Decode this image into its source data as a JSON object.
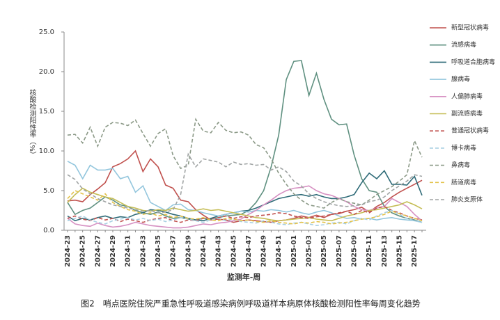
{
  "chart_data": {
    "type": "line",
    "y_label": "核酸检测阳性率（%）",
    "x_label": "监测年-周",
    "caption": "图2　哨点医院住院严重急性呼吸道感染病例呼吸道样本病原体核酸检测阳性率每周变化趋势",
    "categories": [
      "2024-23",
      null,
      "2024-25",
      null,
      "2024-27",
      null,
      "2024-29",
      null,
      "2024-31",
      null,
      "2024-33",
      null,
      "2024-35",
      null,
      "2024-37",
      null,
      "2024-39",
      null,
      "2024-41",
      null,
      "2024-43",
      null,
      "2024-45",
      null,
      "2024-47",
      null,
      "2024-49",
      null,
      "2024-51",
      null,
      "2025-01",
      null,
      "2025-03",
      null,
      "2025-05",
      null,
      "2025-07",
      null,
      "2025-09",
      null,
      "2025-11",
      null,
      "2025-13",
      null,
      "2025-15",
      null,
      "2025-17",
      null
    ],
    "ylim": [
      0,
      25
    ],
    "yticks": [
      {
        "value": 0,
        "label": "0.0"
      },
      {
        "value": 5,
        "label": "5.0"
      },
      {
        "value": 10,
        "label": "10.0"
      },
      {
        "value": 15,
        "label": "15.0"
      },
      {
        "value": 20,
        "label": "20.0"
      },
      {
        "value": 25,
        "label": "25.0"
      }
    ],
    "grid": false,
    "legend": "right",
    "series": [
      {
        "name": "新型冠状病毒",
        "color": "#c0504d",
        "dashed": false,
        "values": [
          3.7,
          3.8,
          3.6,
          4.5,
          5.2,
          6.0,
          8.0,
          8.4,
          9.0,
          10.0,
          7.4,
          9.0,
          8.0,
          5.7,
          5.3,
          3.8,
          3.6,
          2.6,
          1.9,
          1.3,
          1.4,
          1.3,
          1.0,
          1.2,
          1.3,
          1.2,
          1.1,
          1.0,
          1.2,
          1.3,
          1.5,
          1.8,
          1.6,
          1.9,
          1.6,
          2.0,
          2.1,
          2.4,
          2.6,
          2.9,
          2.3,
          3.0,
          3.5,
          4.2,
          4.8,
          5.3,
          5.8,
          6.3
        ]
      },
      {
        "name": "流感病毒",
        "color": "#5f9080",
        "dashed": false,
        "values": [
          3.5,
          2.0,
          2.5,
          2.8,
          3.5,
          4.2,
          3.8,
          3.2,
          3.0,
          2.5,
          2.2,
          2.0,
          2.3,
          1.8,
          1.5,
          1.6,
          1.4,
          1.3,
          1.5,
          1.4,
          1.6,
          1.8,
          1.9,
          2.0,
          2.5,
          3.5,
          5.0,
          8.0,
          12.0,
          19.0,
          21.3,
          21.4,
          17.0,
          19.8,
          16.5,
          14.0,
          13.3,
          13.4,
          9.5,
          6.5,
          5.0,
          4.8,
          3.0,
          2.2,
          1.8,
          1.5,
          1.3,
          1.0
        ]
      },
      {
        "name": "呼吸道合胞病毒",
        "color": "#2f6b78",
        "dashed": false,
        "values": [
          1.8,
          1.2,
          1.5,
          1.3,
          1.6,
          1.8,
          1.5,
          1.7,
          1.6,
          2.0,
          2.2,
          2.6,
          2.5,
          2.3,
          2.0,
          1.8,
          1.5,
          1.3,
          1.2,
          1.5,
          1.8,
          2.0,
          2.2,
          2.4,
          2.5,
          2.8,
          3.2,
          3.6,
          4.0,
          4.2,
          4.4,
          4.5,
          4.3,
          4.5,
          4.2,
          4.0,
          4.0,
          4.2,
          4.5,
          6.0,
          7.2,
          6.5,
          7.5,
          5.8,
          5.8,
          5.7,
          6.8,
          4.4
        ]
      },
      {
        "name": "腺病毒",
        "color": "#93c6dd",
        "dashed": false,
        "values": [
          8.7,
          8.2,
          6.5,
          8.2,
          7.6,
          7.6,
          7.8,
          6.5,
          6.8,
          4.8,
          5.6,
          3.5,
          3.0,
          2.5,
          3.2,
          3.3,
          2.6,
          2.5,
          2.2,
          2.0,
          1.8,
          2.0,
          2.2,
          2.4,
          2.3,
          2.5,
          2.4,
          2.6,
          2.5,
          2.3,
          2.5,
          2.2,
          2.0,
          2.3,
          2.5,
          2.2,
          1.8,
          1.5,
          1.6,
          1.4,
          1.5,
          1.3,
          1.5,
          1.6,
          1.4,
          1.3,
          1.2,
          1.0
        ]
      },
      {
        "name": "人偏肺病毒",
        "color": "#d690c2",
        "dashed": false,
        "values": [
          1.5,
          0.8,
          0.6,
          0.5,
          0.9,
          0.6,
          0.4,
          0.5,
          0.7,
          1.0,
          0.8,
          0.6,
          0.5,
          0.4,
          0.3,
          0.3,
          0.4,
          0.6,
          0.8,
          0.7,
          0.9,
          1.0,
          1.2,
          1.4,
          2.0,
          2.5,
          3.2,
          3.8,
          4.5,
          5.0,
          5.3,
          5.4,
          5.6,
          5.0,
          4.6,
          4.4,
          4.0,
          3.6,
          3.0,
          2.6,
          2.5,
          2.8,
          3.0,
          4.0,
          3.5,
          3.0,
          2.0,
          1.2
        ]
      },
      {
        "name": "副流感病毒",
        "color": "#c5bd55",
        "dashed": false,
        "values": [
          3.5,
          4.5,
          5.3,
          4.8,
          4.5,
          4.2,
          4.0,
          3.5,
          3.0,
          2.8,
          2.5,
          2.4,
          2.6,
          2.5,
          2.8,
          2.6,
          2.4,
          2.5,
          2.7,
          2.5,
          2.6,
          2.4,
          2.2,
          2.0,
          1.8,
          1.6,
          1.5,
          1.3,
          1.2,
          1.3,
          1.4,
          1.5,
          1.6,
          1.4,
          1.3,
          1.2,
          1.5,
          1.8,
          2.0,
          2.2,
          2.5,
          2.6,
          2.8,
          3.0,
          3.2,
          3.6,
          3.2,
          2.7
        ]
      },
      {
        "name": "普通冠状病毒",
        "color": "#c0504d",
        "dashed": true,
        "values": [
          1.5,
          1.8,
          1.4,
          1.2,
          1.6,
          1.3,
          1.5,
          1.1,
          1.4,
          1.2,
          1.0,
          1.3,
          1.5,
          1.6,
          1.2,
          1.0,
          1.3,
          1.2,
          1.5,
          1.4,
          1.6,
          1.8,
          1.5,
          1.7,
          1.6,
          1.8,
          1.9,
          2.0,
          2.2,
          2.1,
          1.8,
          1.6,
          1.5,
          1.7,
          1.8,
          2.0,
          2.2,
          2.4,
          2.0,
          2.5,
          2.2,
          2.8,
          3.0,
          2.5,
          2.2,
          1.8,
          1.5,
          1.3
        ]
      },
      {
        "name": "博卡病毒",
        "color": "#a8cfe2",
        "dashed": true,
        "values": [
          1.2,
          1.5,
          1.8,
          1.3,
          1.0,
          0.8,
          1.2,
          1.4,
          1.6,
          1.3,
          1.5,
          1.2,
          1.4,
          1.1,
          1.3,
          1.6,
          1.4,
          1.2,
          1.0,
          1.3,
          1.5,
          1.2,
          1.4,
          1.1,
          1.0,
          0.9,
          1.2,
          1.0,
          0.8,
          0.7,
          0.9,
          1.0,
          0.8,
          0.6,
          0.7,
          0.9,
          1.0,
          0.8,
          1.2,
          1.5,
          1.3,
          1.8,
          2.2,
          2.5,
          2.0,
          1.5,
          1.2,
          1.0
        ]
      },
      {
        "name": "鼻病毒",
        "color": "#8c9a88",
        "dashed": true,
        "values": [
          12.0,
          12.1,
          11.0,
          13.0,
          10.6,
          13.0,
          13.6,
          13.5,
          13.2,
          13.9,
          12.2,
          10.6,
          12.2,
          12.8,
          9.4,
          7.8,
          8.2,
          14.0,
          12.5,
          12.3,
          13.6,
          12.6,
          12.3,
          12.4,
          12.0,
          10.8,
          10.4,
          9.0,
          7.2,
          5.8,
          4.6,
          3.8,
          3.2,
          3.0,
          2.8,
          3.5,
          4.0,
          3.6,
          3.4,
          3.2,
          3.8,
          4.5,
          5.0,
          5.5,
          6.2,
          7.0,
          11.3,
          9.2
        ]
      },
      {
        "name": "肠道病毒",
        "color": "#e3c24a",
        "dashed": true,
        "values": [
          4.0,
          5.0,
          4.6,
          4.2,
          3.8,
          4.6,
          3.5,
          3.0,
          2.6,
          2.4,
          2.0,
          2.2,
          1.8,
          2.0,
          1.6,
          1.8,
          1.5,
          1.4,
          1.6,
          1.3,
          1.2,
          1.5,
          1.4,
          1.2,
          1.3,
          1.1,
          1.0,
          1.2,
          1.0,
          0.9,
          0.8,
          1.0,
          0.9,
          1.1,
          1.0,
          0.8,
          0.9,
          1.0,
          1.2,
          1.4,
          1.5,
          1.7,
          2.0,
          2.4,
          2.1,
          1.8,
          1.5,
          1.2
        ]
      },
      {
        "name": "肺炎支原体",
        "color": "#a0a4a4",
        "dashed": true,
        "values": [
          7.0,
          6.4,
          5.2,
          4.6,
          4.0,
          3.6,
          3.2,
          3.0,
          2.8,
          2.6,
          2.4,
          2.5,
          2.2,
          2.3,
          2.6,
          4.5,
          9.6,
          8.0,
          9.0,
          8.8,
          8.6,
          8.0,
          8.6,
          8.3,
          8.4,
          8.2,
          8.3,
          7.6,
          8.0,
          7.4,
          6.2,
          5.6,
          4.6,
          4.0,
          3.6,
          3.3,
          3.1,
          3.0,
          3.1,
          3.2,
          3.6,
          3.8,
          4.2,
          5.0,
          5.6,
          6.2,
          7.0,
          6.8
        ]
      }
    ]
  }
}
